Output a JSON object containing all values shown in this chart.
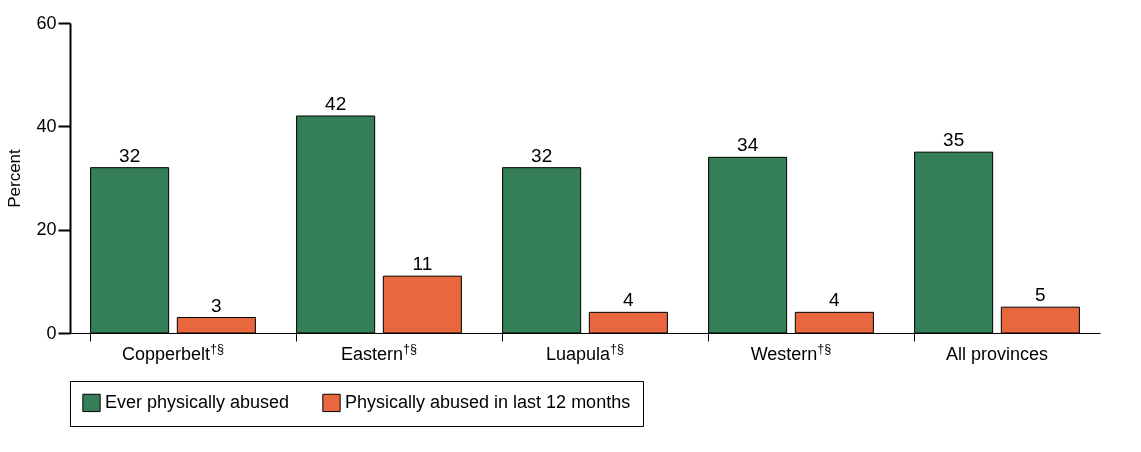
{
  "chart_data": {
    "type": "bar",
    "ylabel": "Percent",
    "categories": [
      "Copperbelt$^{†§}$",
      "Eastern$^{†§}$",
      "Luapula$^{†§}$",
      "Western$^{†§}$",
      "All provinces"
    ],
    "series": [
      {
        "name": "Ever physically abused",
        "color": "#347f57",
        "values": [
          32,
          42,
          32,
          34,
          35
        ]
      },
      {
        "name": "Physically abused in last 12 months",
        "color": "#e8673f",
        "values": [
          3,
          11,
          4,
          4,
          5
        ]
      }
    ],
    "ylim": [
      0,
      60
    ],
    "yticks": [
      0,
      20,
      40,
      60
    ],
    "grid": false,
    "legend": "bottom",
    "data_labels": true
  }
}
